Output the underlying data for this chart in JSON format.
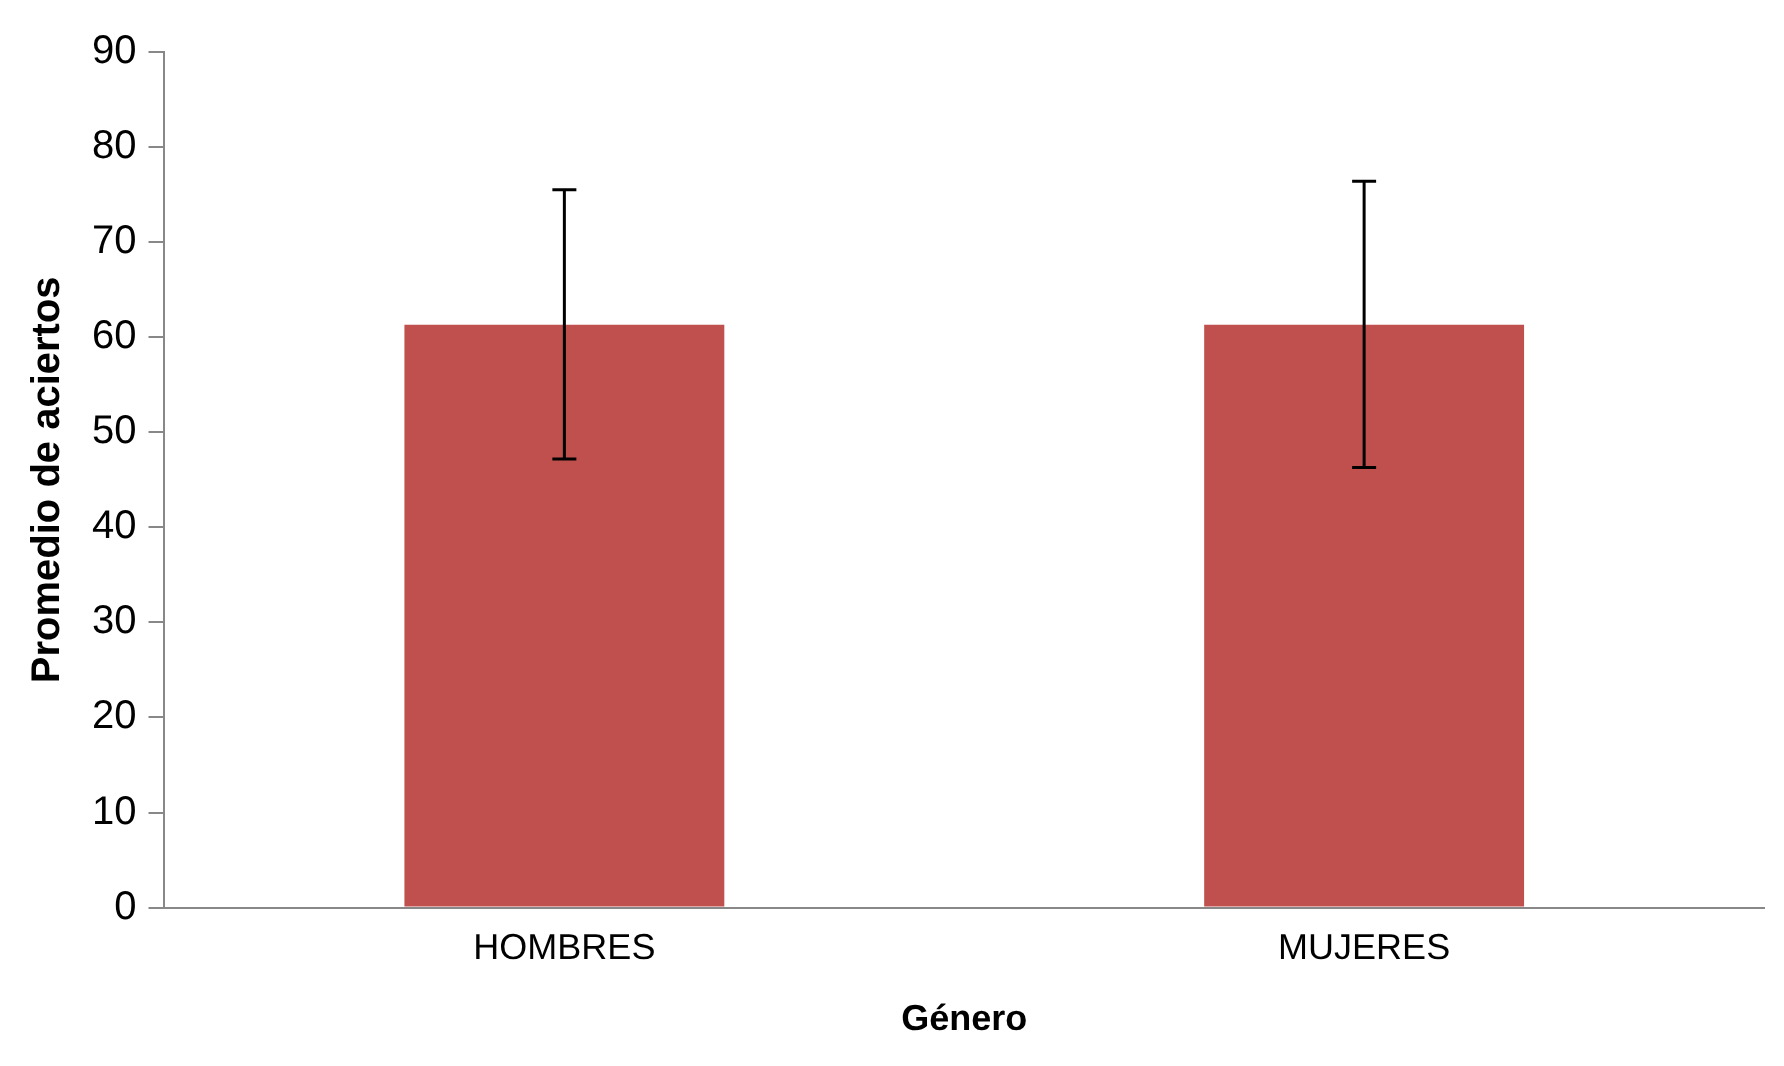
{
  "chart_data": {
    "type": "bar",
    "xlabel": "Género",
    "ylabel": "Promedio de aciertos",
    "categories": [
      "HOMBRES",
      "MUJERES"
    ],
    "values": [
      61.3,
      61.3
    ],
    "errors": [
      [
        47.2,
        75.5
      ],
      [
        46.3,
        76.4
      ]
    ],
    "color": "#c0504d",
    "ylim": [
      0,
      90
    ],
    "yticks": [
      0,
      10,
      20,
      30,
      40,
      50,
      60,
      70,
      80,
      90
    ],
    "grid": false,
    "legend": false
  }
}
